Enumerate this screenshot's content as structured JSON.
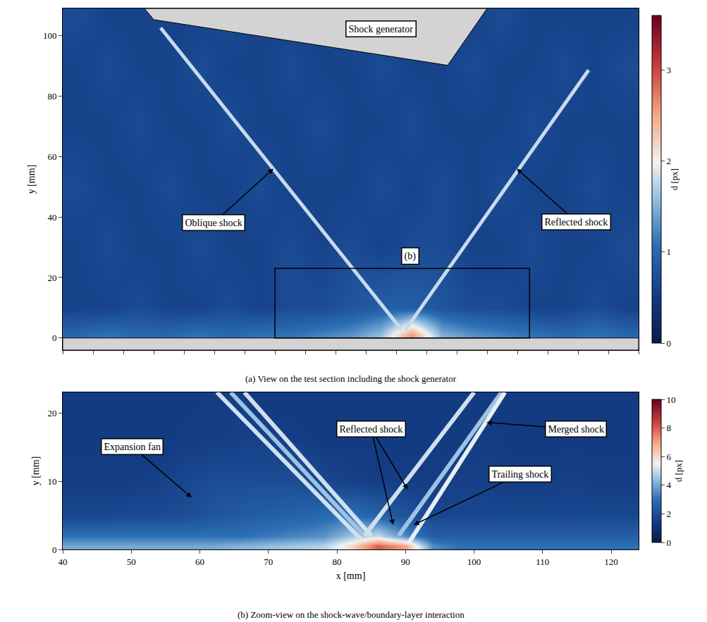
{
  "chart_data": [
    {
      "type": "heatmap",
      "caption": "(a) View on the test section including the shock generator",
      "x_label": "",
      "y_label": "y [mm]",
      "xlim": [
        -30,
        160
      ],
      "ylim": [
        -4,
        109
      ],
      "xticks": [
        -30,
        -20,
        -10,
        0,
        10,
        20,
        30,
        40,
        50,
        60,
        70,
        80,
        90,
        100,
        110,
        120,
        130,
        140,
        150,
        160
      ],
      "yticks": [
        0,
        20,
        40,
        60,
        80,
        100
      ],
      "tick_labels": "y",
      "colorbar_title": "d [px]",
      "colorbar_range": [
        0,
        3.6
      ],
      "colorbar_ticks": [
        0,
        1,
        2,
        3
      ],
      "x": [
        -25,
        -15,
        -5,
        5,
        15,
        25,
        35,
        45,
        55,
        65,
        75,
        85,
        95,
        105,
        115,
        125,
        135,
        145,
        155
      ],
      "y": [
        1,
        10,
        30,
        50,
        70,
        90,
        105
      ],
      "z": [
        [
          1.0,
          1.1,
          1.0,
          1.0,
          1.1,
          1.0,
          1.1,
          1.1,
          1.2,
          1.3,
          1.6,
          2.6,
          1.5,
          1.3,
          1.2,
          1.1,
          1.0,
          1.1,
          1.0
        ],
        [
          0.6,
          0.6,
          0.7,
          0.6,
          0.6,
          0.7,
          0.6,
          0.7,
          0.7,
          0.8,
          0.9,
          0.9,
          0.8,
          0.7,
          0.7,
          0.6,
          0.6,
          0.7,
          0.6
        ],
        [
          0.6,
          0.7,
          0.6,
          0.6,
          0.7,
          0.6,
          0.6,
          0.7,
          0.6,
          0.7,
          0.6,
          0.7,
          0.7,
          0.6,
          0.6,
          0.7,
          0.6,
          0.6,
          0.7
        ],
        [
          0.7,
          0.6,
          0.6,
          0.7,
          0.6,
          0.6,
          0.7,
          0.6,
          0.6,
          0.6,
          0.7,
          0.6,
          0.7,
          0.6,
          0.7,
          0.6,
          0.6,
          0.7,
          0.6
        ],
        [
          0.6,
          0.6,
          0.7,
          0.6,
          0.6,
          0.7,
          0.6,
          0.6,
          0.7,
          0.6,
          0.6,
          0.7,
          0.6,
          0.6,
          0.6,
          0.7,
          0.6,
          0.6,
          0.6
        ],
        [
          0.6,
          0.7,
          0.6,
          0.6,
          0.7,
          0.6,
          0.6,
          0.7,
          0.6,
          0.6,
          0.7,
          0.6,
          0.6,
          0.7,
          0.6,
          0.6,
          0.7,
          0.6,
          0.7
        ],
        [
          0.7,
          0.6,
          0.6,
          0.6,
          0.6,
          0.7,
          0.6,
          0.6,
          0.6,
          0.7,
          0.6,
          0.6,
          0.6,
          0.6,
          0.7,
          0.6,
          0.6,
          0.6,
          0.6
        ]
      ],
      "series": [
        {
          "type": "line",
          "x": [
            2.3,
            81.9
          ],
          "y": [
            102.6,
            2.6
          ],
          "color": "#c6dbef"
        },
        {
          "type": "line",
          "x": [
            83.0,
            143.5
          ],
          "y": [
            2.6,
            88.6
          ],
          "color": "#c6dbef"
        }
      ],
      "annotations": [
        "Oblique shock",
        "Reflected shock"
      ],
      "shock_generator": {
        "label": "Shock generator",
        "x": [
          -3.0,
          0.0,
          97.0,
          110.0
        ],
        "y": [
          109,
          105.3,
          90.2,
          109
        ]
      },
      "inset_label": "(b)"
    },
    {
      "type": "heatmap",
      "caption": "(b) Zoom-view on the shock-wave/boundary-layer interaction",
      "x_label": "x [mm]",
      "y_label": "y [mm]",
      "xlim": [
        40,
        124
      ],
      "ylim": [
        0,
        23
      ],
      "xticks": [
        40,
        50,
        60,
        70,
        80,
        90,
        100,
        110,
        120
      ],
      "yticks": [
        0,
        10,
        20
      ],
      "tick_labels": true,
      "colorbar_title": "d [px]",
      "colorbar_range": [
        0,
        10
      ],
      "colorbar_ticks": [
        0,
        2,
        4,
        6,
        8,
        10
      ],
      "x": [
        42,
        46,
        50,
        54,
        58,
        62,
        66,
        70,
        74,
        78,
        82,
        86,
        90,
        94,
        98,
        102,
        106,
        110,
        114,
        118,
        122
      ],
      "y": [
        0.5,
        2,
        5,
        10,
        16,
        21
      ],
      "z": [
        [
          4.0,
          4.0,
          4.0,
          4.0,
          4.0,
          4.0,
          4.2,
          4.4,
          4.6,
          4.8,
          6.0,
          8.0,
          7.0,
          3.5,
          3.0,
          3.0,
          3.0,
          3.0,
          3.0,
          3.0,
          3.0
        ],
        [
          3.0,
          3.0,
          3.0,
          3.0,
          3.0,
          3.0,
          3.0,
          3.2,
          3.4,
          3.6,
          4.5,
          5.0,
          3.5,
          2.5,
          2.5,
          2.5,
          2.5,
          2.5,
          2.5,
          2.5,
          2.5
        ],
        [
          1.8,
          1.8,
          1.9,
          1.9,
          2.0,
          2.2,
          2.4,
          2.5,
          2.6,
          2.8,
          3.0,
          2.6,
          2.2,
          1.8,
          1.8,
          1.8,
          1.8,
          1.8,
          1.8,
          1.8,
          1.8
        ],
        [
          1.5,
          1.5,
          1.5,
          1.6,
          1.8,
          2.0,
          2.0,
          2.0,
          2.0,
          1.8,
          1.6,
          1.5,
          1.5,
          1.5,
          1.6,
          1.6,
          1.5,
          1.5,
          1.6,
          1.5,
          1.5
        ],
        [
          1.4,
          1.4,
          1.4,
          1.4,
          1.5,
          1.5,
          1.6,
          1.6,
          1.5,
          1.4,
          1.4,
          1.4,
          1.4,
          1.4,
          1.4,
          1.5,
          1.4,
          1.4,
          1.4,
          1.4,
          1.4
        ],
        [
          1.4,
          1.4,
          1.4,
          1.4,
          1.4,
          1.5,
          1.5,
          1.4,
          1.4,
          1.4,
          1.4,
          1.4,
          1.4,
          1.4,
          1.4,
          1.4,
          1.4,
          1.4,
          1.4,
          1.4,
          1.4
        ]
      ],
      "series": [
        {
          "type": "line",
          "x": [
            62.5,
            83.5
          ],
          "y": [
            23,
            1.5
          ],
          "color": "#cfe0ee"
        },
        {
          "type": "line",
          "x": [
            64.5,
            84.0
          ],
          "y": [
            23,
            2.0
          ],
          "color": "#9cc3e2"
        },
        {
          "type": "line",
          "x": [
            66.5,
            85.0
          ],
          "y": [
            23,
            2.0
          ],
          "color": "#cfe0ee"
        },
        {
          "type": "line",
          "x": [
            84.0,
            100.0
          ],
          "y": [
            2.0,
            23
          ],
          "color": "#cfe0ee"
        },
        {
          "type": "line",
          "x": [
            89.0,
            104.0
          ],
          "y": [
            2.0,
            23
          ],
          "color": "#9cc3e2"
        },
        {
          "type": "line",
          "x": [
            90.5,
            104.5
          ],
          "y": [
            1.0,
            23
          ],
          "color": "#e8eef5"
        }
      ],
      "annotations": [
        "Expansion fan",
        "Reflected shock",
        "Merged shock",
        "Trailing shock"
      ]
    }
  ]
}
